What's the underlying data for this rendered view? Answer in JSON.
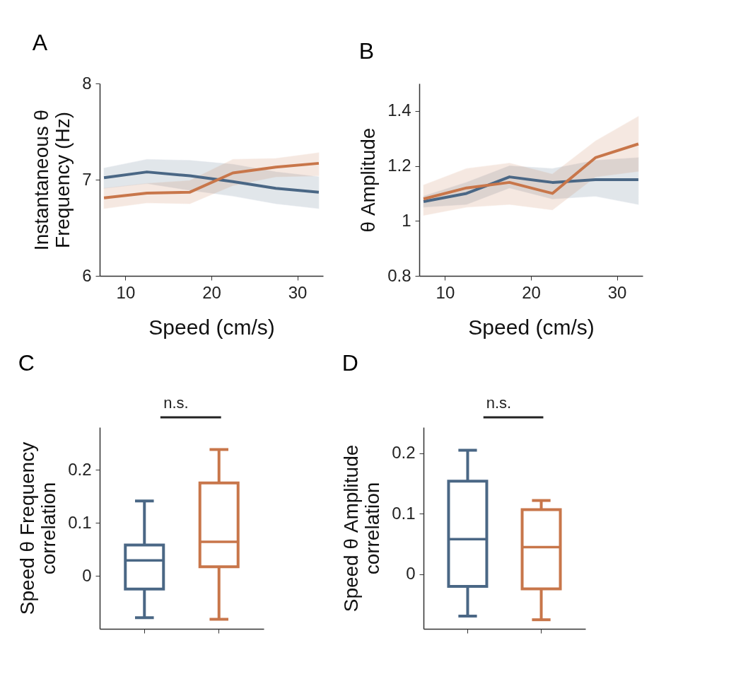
{
  "chart_data": [
    {
      "type": "line",
      "title": "A",
      "xlabel": "Speed (cm/s)",
      "ylabel": "Instantaneous  θ\nFrequency (Hz)",
      "x": [
        7.5,
        12.5,
        17.5,
        22.5,
        27.5,
        32.5
      ],
      "xlim": [
        7,
        33
      ],
      "xticks": [
        10,
        20,
        30
      ],
      "ylim": [
        6,
        8
      ],
      "yticks": [
        6,
        7,
        8
      ],
      "tick_labels": true,
      "series": [
        {
          "color": "#4a6785",
          "values": [
            7.02,
            7.08,
            7.04,
            6.98,
            6.91,
            6.87
          ],
          "lower": [
            6.91,
            6.96,
            6.89,
            6.83,
            6.75,
            6.7
          ],
          "upper": [
            7.12,
            7.21,
            7.2,
            7.16,
            7.08,
            7.03
          ]
        },
        {
          "color": "#c8764a",
          "values": [
            6.81,
            6.86,
            6.87,
            7.07,
            7.13,
            7.17
          ],
          "lower": [
            6.7,
            6.76,
            6.75,
            6.94,
            7.03,
            7.04
          ],
          "upper": [
            6.91,
            6.96,
            6.99,
            7.21,
            7.22,
            7.28
          ]
        }
      ]
    },
    {
      "type": "line",
      "title": "B",
      "xlabel": "Speed (cm/s)",
      "ylabel": "θ  Amplitude",
      "x": [
        7.5,
        12.5,
        17.5,
        22.5,
        27.5,
        32.5
      ],
      "xlim": [
        7,
        33
      ],
      "xticks": [
        10,
        20,
        30
      ],
      "ylim": [
        0.8,
        1.5
      ],
      "yticks": [
        0.8,
        1,
        1.2,
        1.4
      ],
      "series": [
        {
          "color": "#4a6785",
          "values": [
            1.07,
            1.1,
            1.16,
            1.14,
            1.15,
            1.15
          ],
          "lower": [
            1.05,
            1.06,
            1.12,
            1.08,
            1.09,
            1.06
          ],
          "upper": [
            1.09,
            1.14,
            1.2,
            1.19,
            1.22,
            1.23
          ]
        },
        {
          "color": "#c8764a",
          "values": [
            1.08,
            1.12,
            1.14,
            1.1,
            1.23,
            1.28
          ],
          "lower": [
            1.02,
            1.05,
            1.06,
            1.04,
            1.16,
            1.18
          ],
          "upper": [
            1.13,
            1.19,
            1.21,
            1.17,
            1.29,
            1.38
          ]
        }
      ]
    },
    {
      "type": "box",
      "title": "C",
      "ylabel": "Speed θ Frequency\ncorrelation",
      "categories": [
        null,
        null
      ],
      "ylim": [
        -0.1,
        0.28
      ],
      "yticks": [
        0,
        0.1,
        0.2
      ],
      "tick_labels": "y",
      "colors": [
        "#4a6785",
        "#c8764a"
      ],
      "annotations": [
        "n.s."
      ],
      "boxes": [
        {
          "low": -0.079,
          "q1": -0.025,
          "median": 0.029,
          "q3": 0.058,
          "high": 0.141
        },
        {
          "low": -0.082,
          "q1": 0.017,
          "median": 0.064,
          "q3": 0.175,
          "high": 0.238
        }
      ]
    },
    {
      "type": "box",
      "title": "D",
      "ylabel": "Speed  θ Amplitude\ncorrelation",
      "categories": [
        null,
        null
      ],
      "ylim": [
        -0.09,
        0.243
      ],
      "yticks": [
        0,
        0.1,
        0.2
      ],
      "tick_labels": "y",
      "colors": [
        "#4a6785",
        "#c8764a"
      ],
      "annotations": [
        "n.s."
      ],
      "boxes": [
        {
          "low": -0.069,
          "q1": -0.02,
          "median": 0.058,
          "q3": 0.154,
          "high": 0.205
        },
        {
          "low": -0.075,
          "q1": -0.024,
          "median": 0.045,
          "q3": 0.107,
          "high": 0.122
        }
      ]
    }
  ]
}
